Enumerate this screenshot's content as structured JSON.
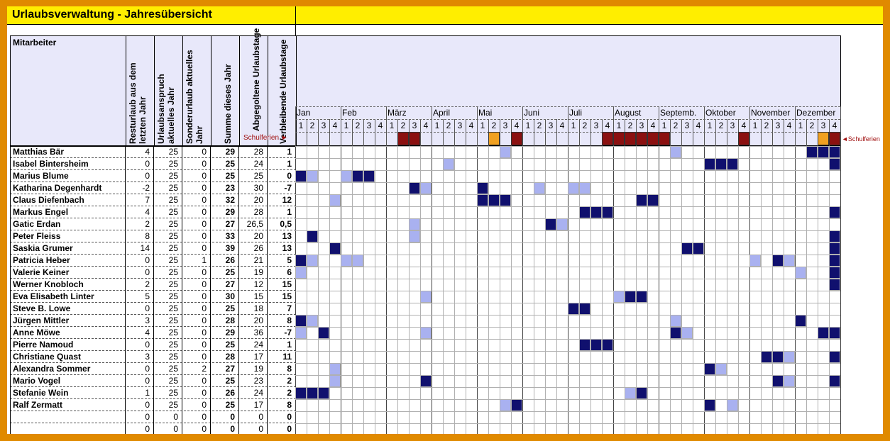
{
  "title": "Urlaubsverwaltung - Jahresübersicht",
  "headers": {
    "mitarbeiter": "Mitarbeiter",
    "resturlaub": "Resturlaub aus dem letzten Jahr",
    "anspruch": "Urlaubsanspruch aktuelles Jahr",
    "sonder": "Sonderurlaub aktuelles Jahr",
    "summe": "Summe dieses Jahr",
    "abgegolten": "Abgegoltene Urlaubstage",
    "verbleibend": "Verbleibende Urlaubstage",
    "schulferien": "Schulferien ►",
    "schulferien_right": "◄Schulferien"
  },
  "months": [
    "Jan",
    "Feb",
    "März",
    "April",
    "Mai",
    "Juni",
    "Juli",
    "August",
    "Septemb.",
    "Oktober",
    "November",
    "Dezember"
  ],
  "weeks_per_month": 4,
  "colors": {
    "dark": "#10106e",
    "light": "#a9b1f0",
    "orange": "#f0a020",
    "red": "#8b1010",
    "header_bg": "#e8e8fa",
    "title_bg": "#ffee00",
    "frame": "#e08a00"
  },
  "schulferien_cells": {
    "9": "red",
    "10": "red",
    "17": "orange",
    "19": "red",
    "27": "red",
    "28": "red",
    "29": "red",
    "30": "red",
    "31": "red",
    "32": "red",
    "39": "red",
    "46": "orange",
    "47": "red"
  },
  "employees": [
    {
      "name": "Matthias Bär",
      "rest": "4",
      "anspruch": "25",
      "sonder": "0",
      "summe": "29",
      "abgegolten": "28",
      "verbleibend": "1",
      "dark": [
        45,
        46,
        47
      ],
      "light": [
        18,
        33
      ]
    },
    {
      "name": "Isabel Bintersheim",
      "rest": "0",
      "anspruch": "25",
      "sonder": "0",
      "summe": "25",
      "abgegolten": "24",
      "verbleibend": "1",
      "dark": [
        36,
        37,
        38,
        47
      ],
      "light": [
        13
      ]
    },
    {
      "name": "Marius Blume",
      "rest": "0",
      "anspruch": "25",
      "sonder": "0",
      "summe": "25",
      "abgegolten": "25",
      "verbleibend": "0",
      "dark": [
        0,
        5,
        6
      ],
      "light": [
        1,
        4
      ]
    },
    {
      "name": "Katharina Degenhardt",
      "rest": "-2",
      "anspruch": "25",
      "sonder": "0",
      "summe": "23",
      "abgegolten": "30",
      "verbleibend": "-7",
      "dark": [
        10,
        16
      ],
      "light": [
        11,
        21,
        24,
        25
      ]
    },
    {
      "name": "Claus Diefenbach",
      "rest": "7",
      "anspruch": "25",
      "sonder": "0",
      "summe": "32",
      "abgegolten": "20",
      "verbleibend": "12",
      "dark": [
        16,
        17,
        18,
        30,
        31
      ],
      "light": [
        3
      ]
    },
    {
      "name": "Markus Engel",
      "rest": "4",
      "anspruch": "25",
      "sonder": "0",
      "summe": "29",
      "abgegolten": "28",
      "verbleibend": "1",
      "dark": [
        25,
        26,
        27,
        47
      ],
      "light": []
    },
    {
      "name": "Gatic Erdan",
      "rest": "2",
      "anspruch": "25",
      "sonder": "0",
      "summe": "27",
      "abgegolten": "26,5",
      "verbleibend": "0,5",
      "dark": [
        22
      ],
      "light": [
        10,
        23
      ]
    },
    {
      "name": "Peter Fleiss",
      "rest": "8",
      "anspruch": "25",
      "sonder": "0",
      "summe": "33",
      "abgegolten": "20",
      "verbleibend": "13",
      "dark": [
        1,
        47
      ],
      "light": [
        10
      ]
    },
    {
      "name": "Saskia Grumer",
      "rest": "14",
      "anspruch": "25",
      "sonder": "0",
      "summe": "39",
      "abgegolten": "26",
      "verbleibend": "13",
      "dark": [
        3,
        34,
        35,
        47
      ],
      "light": []
    },
    {
      "name": "Patricia Heber",
      "rest": "0",
      "anspruch": "25",
      "sonder": "1",
      "summe": "26",
      "abgegolten": "21",
      "verbleibend": "5",
      "dark": [
        0,
        42,
        47
      ],
      "light": [
        1,
        4,
        5,
        40,
        43
      ]
    },
    {
      "name": "Valerie Keiner",
      "rest": "0",
      "anspruch": "25",
      "sonder": "0",
      "summe": "25",
      "abgegolten": "19",
      "verbleibend": "6",
      "dark": [
        47
      ],
      "light": [
        0,
        44
      ]
    },
    {
      "name": "Werner Knobloch",
      "rest": "2",
      "anspruch": "25",
      "sonder": "0",
      "summe": "27",
      "abgegolten": "12",
      "verbleibend": "15",
      "dark": [
        47
      ],
      "light": []
    },
    {
      "name": "Eva Elisabeth Linter",
      "rest": "5",
      "anspruch": "25",
      "sonder": "0",
      "summe": "30",
      "abgegolten": "15",
      "verbleibend": "15",
      "dark": [
        29,
        30
      ],
      "light": [
        11,
        28
      ]
    },
    {
      "name": "Steve B. Lowe",
      "rest": "0",
      "anspruch": "25",
      "sonder": "0",
      "summe": "25",
      "abgegolten": "18",
      "verbleibend": "7",
      "dark": [
        24,
        25
      ],
      "light": []
    },
    {
      "name": "Jürgen Mittler",
      "rest": "3",
      "anspruch": "25",
      "sonder": "0",
      "summe": "28",
      "abgegolten": "20",
      "verbleibend": "8",
      "dark": [
        0,
        44
      ],
      "light": [
        1,
        33
      ]
    },
    {
      "name": "Anne Möwe",
      "rest": "4",
      "anspruch": "25",
      "sonder": "0",
      "summe": "29",
      "abgegolten": "36",
      "verbleibend": "-7",
      "dark": [
        2,
        33,
        46,
        47
      ],
      "light": [
        0,
        11,
        34
      ]
    },
    {
      "name": "Pierre Namoud",
      "rest": "0",
      "anspruch": "25",
      "sonder": "0",
      "summe": "25",
      "abgegolten": "24",
      "verbleibend": "1",
      "dark": [
        25,
        26,
        27
      ],
      "light": []
    },
    {
      "name": "Christiane Quast",
      "rest": "3",
      "anspruch": "25",
      "sonder": "0",
      "summe": "28",
      "abgegolten": "17",
      "verbleibend": "11",
      "dark": [
        41,
        42,
        47
      ],
      "light": [
        43
      ]
    },
    {
      "name": "Alexandra Sommer",
      "rest": "0",
      "anspruch": "25",
      "sonder": "2",
      "summe": "27",
      "abgegolten": "19",
      "verbleibend": "8",
      "dark": [
        36
      ],
      "light": [
        3,
        37
      ]
    },
    {
      "name": "Mario Vogel",
      "rest": "0",
      "anspruch": "25",
      "sonder": "0",
      "summe": "25",
      "abgegolten": "23",
      "verbleibend": "2",
      "dark": [
        11,
        42,
        47
      ],
      "light": [
        3,
        43
      ]
    },
    {
      "name": "Stefanie Wein",
      "rest": "1",
      "anspruch": "25",
      "sonder": "0",
      "summe": "26",
      "abgegolten": "24",
      "verbleibend": "2",
      "dark": [
        0,
        1,
        2,
        30
      ],
      "light": [
        29
      ]
    },
    {
      "name": "Ralf Zermatt",
      "rest": "0",
      "anspruch": "25",
      "sonder": "0",
      "summe": "25",
      "abgegolten": "17",
      "verbleibend": "8",
      "dark": [
        19,
        36
      ],
      "light": [
        18,
        38
      ]
    },
    {
      "name": "",
      "rest": "0",
      "anspruch": "0",
      "sonder": "0",
      "summe": "0",
      "abgegolten": "0",
      "verbleibend": "0",
      "dark": [],
      "light": []
    },
    {
      "name": "",
      "rest": "0",
      "anspruch": "0",
      "sonder": "0",
      "summe": "0",
      "abgegolten": "0",
      "verbleibend": "0",
      "dark": [],
      "light": []
    }
  ]
}
